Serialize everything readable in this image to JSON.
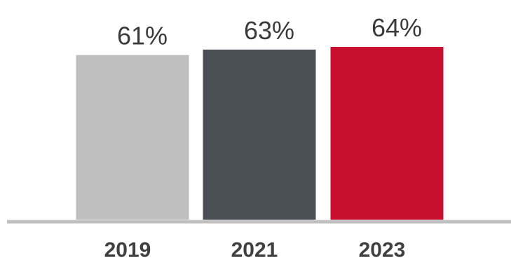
{
  "chart_data": {
    "type": "bar",
    "categories": [
      "2019",
      "2021",
      "2023"
    ],
    "values": [
      61,
      63,
      64
    ],
    "value_labels": [
      "61%",
      "63%",
      "64%"
    ],
    "colors": [
      "#bfbfbf",
      "#4a4e55",
      "#c8102e"
    ],
    "title": "",
    "xlabel": "",
    "ylabel": "",
    "ylim": [
      0,
      64
    ],
    "grid": false,
    "legend": "none"
  }
}
